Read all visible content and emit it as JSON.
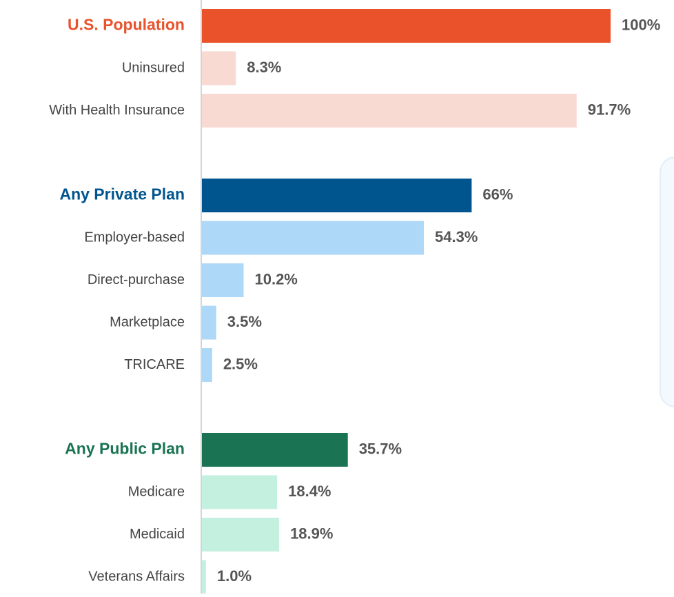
{
  "chart_data": {
    "type": "bar",
    "xlim": [
      0,
      100
    ],
    "groups": [
      {
        "name": "U.S. Population",
        "value": 100,
        "value_label": "100%",
        "color": "#e9522a",
        "sub_color": "#f9dad3",
        "categories": [
          "Uninsured",
          "With Health Insurance"
        ],
        "values": [
          8.3,
          91.7
        ],
        "value_labels": [
          "8.3%",
          "91.7%"
        ]
      },
      {
        "name": "Any Private Plan",
        "value": 66,
        "value_label": "66%",
        "color": "#00558f",
        "sub_color": "#aed8f7",
        "categories": [
          "Employer-based",
          "Direct-purchase",
          "Marketplace",
          "TRICARE"
        ],
        "values": [
          54.3,
          10.2,
          3.5,
          2.5
        ],
        "value_labels": [
          "54.3%",
          "10.2%",
          "3.5%",
          "2.5%"
        ]
      },
      {
        "name": "Any Public Plan",
        "value": 35.7,
        "value_label": "35.7%",
        "color": "#1a7352",
        "sub_color": "#c4f0e0",
        "categories": [
          "Medicare",
          "Medicaid",
          "Veterans Affairs"
        ],
        "values": [
          18.4,
          18.9,
          1.0
        ],
        "value_labels": [
          "18.4%",
          "18.9%",
          "1.0%"
        ]
      }
    ]
  }
}
